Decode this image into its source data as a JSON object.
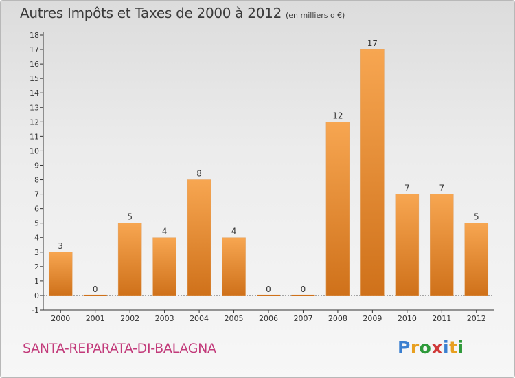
{
  "title": "Autres Impôts et Taxes de 2000 à 2012",
  "subtitle": "(en milliers d'€)",
  "commune": "SANTA-REPARATA-DI-BALAGNA",
  "logo": {
    "letters": [
      "P",
      "r",
      "o",
      "x",
      "i",
      "t",
      "i"
    ],
    "colors": [
      "#3a7fd0",
      "#e8a020",
      "#2e9a3a",
      "#d03a3a",
      "#3a7fd0",
      "#e8a020",
      "#2e9a3a"
    ]
  },
  "colors": {
    "bar_top": "#f7a651",
    "bar_bottom": "#cf711a",
    "commune_text": "#c23a7a"
  },
  "chart_data": {
    "type": "bar",
    "categories": [
      "2000",
      "2001",
      "2002",
      "2003",
      "2004",
      "2005",
      "2006",
      "2007",
      "2008",
      "2009",
      "2010",
      "2011",
      "2012"
    ],
    "values": [
      3,
      0,
      5,
      4,
      8,
      4,
      0,
      0,
      12,
      17,
      7,
      7,
      5
    ],
    "data_labels": [
      "3",
      "0",
      "5",
      "4",
      "8",
      "4",
      "0",
      "0",
      "12",
      "17",
      "7",
      "7",
      "5"
    ],
    "ylim": [
      -1,
      18
    ],
    "yticks": [
      "-1",
      "0",
      "1",
      "2",
      "3",
      "4",
      "5",
      "6",
      "7",
      "8",
      "9",
      "10",
      "11",
      "12",
      "13",
      "14",
      "15",
      "16",
      "17",
      "18"
    ],
    "grid": false,
    "legend": "none"
  }
}
